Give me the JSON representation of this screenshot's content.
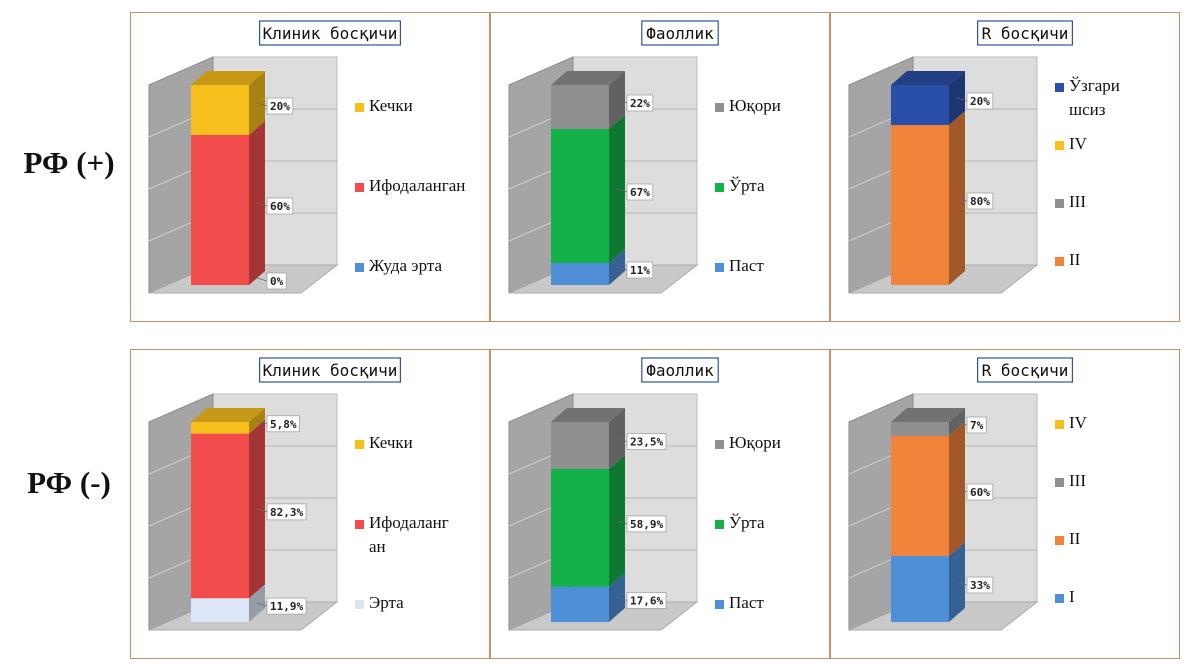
{
  "rows": [
    {
      "label": "РФ (+)"
    },
    {
      "label": "РФ (-)"
    }
  ],
  "colors": {
    "light_blue": "#dbe7f6",
    "blue": "#4f8fd8",
    "navy": "#2a4fa8",
    "red": "#f24c4c",
    "yellow": "#f6bf1c",
    "green": "#14b04a",
    "gray": "#8f8f8f",
    "orange": "#f0823a"
  },
  "chart_data": [
    {
      "type": "bar",
      "stacked": true,
      "row": 0,
      "col": 0,
      "title": "Клиник босқичи",
      "series": [
        {
          "name": "Жуда эрта",
          "value": 0,
          "label": "0%",
          "color": "#dbe7f6"
        },
        {
          "name": "Ифодаланган",
          "value": 60,
          "label": "60%",
          "color": "#f24c4c"
        },
        {
          "name": "Кечки",
          "value": 20,
          "label": "20%",
          "color": "#f6bf1c"
        }
      ],
      "legend": [
        {
          "text": [
            "Кечки"
          ],
          "color": "#f6bf1c"
        },
        {
          "text": [
            "Ифодаланган"
          ],
          "color": "#f24c4c"
        },
        {
          "text": [
            "Жуда эрта"
          ],
          "color": "#4f8fd8"
        }
      ]
    },
    {
      "type": "bar",
      "stacked": true,
      "row": 0,
      "col": 1,
      "title": "Фаоллик",
      "series": [
        {
          "name": "Паст",
          "value": 11,
          "label": "11%",
          "color": "#4f8fd8"
        },
        {
          "name": "Ўрта",
          "value": 67,
          "label": "67%",
          "color": "#14b04a"
        },
        {
          "name": "Юқори",
          "value": 22,
          "label": "22%",
          "color": "#8f8f8f"
        }
      ],
      "legend": [
        {
          "text": [
            "Юқори"
          ],
          "color": "#8f8f8f"
        },
        {
          "text": [
            "Ўрта"
          ],
          "color": "#14b04a"
        },
        {
          "text": [
            "Паст"
          ],
          "color": "#4f8fd8"
        }
      ]
    },
    {
      "type": "bar",
      "stacked": true,
      "row": 0,
      "col": 2,
      "title": "R босқичи",
      "series": [
        {
          "name": "II",
          "value": 80,
          "label": "80%",
          "color": "#f0823a"
        },
        {
          "name": "Ўзгаришсиз",
          "value": 20,
          "label": "20%",
          "color": "#2a4fa8"
        }
      ],
      "legend": [
        {
          "text": [
            "Ўзгари",
            "шсиз"
          ],
          "color": "#2a4fa8"
        },
        {
          "text": [
            "IV"
          ],
          "color": "#f6bf1c"
        },
        {
          "text": [
            "III"
          ],
          "color": "#8f8f8f"
        },
        {
          "text": [
            "II"
          ],
          "color": "#f0823a"
        }
      ]
    },
    {
      "type": "bar",
      "stacked": true,
      "row": 1,
      "col": 0,
      "title": "Клиник босқичи",
      "series": [
        {
          "name": "Эрта",
          "value": 11.9,
          "label": "11,9%",
          "color": "#dbe7f6"
        },
        {
          "name": "Ифодаланган",
          "value": 82.3,
          "label": "82,3%",
          "color": "#f24c4c"
        },
        {
          "name": "Кечки",
          "value": 5.8,
          "label": "5,8%",
          "color": "#f6bf1c"
        }
      ],
      "legend": [
        {
          "text": [
            "Кечки"
          ],
          "color": "#f6bf1c"
        },
        {
          "text": [
            "Ифодаланг",
            "ан"
          ],
          "color": "#f24c4c"
        },
        {
          "text": [
            "Эрта"
          ],
          "color": "#dbe7f6"
        }
      ]
    },
    {
      "type": "bar",
      "stacked": true,
      "row": 1,
      "col": 1,
      "title": "Фаоллик",
      "series": [
        {
          "name": "Паст",
          "value": 17.6,
          "label": "17,6%",
          "color": "#4f8fd8"
        },
        {
          "name": "Ўрта",
          "value": 58.9,
          "label": "58,9%",
          "color": "#14b04a"
        },
        {
          "name": "Юқори",
          "value": 23.5,
          "label": "23,5%",
          "color": "#8f8f8f"
        }
      ],
      "legend": [
        {
          "text": [
            "Юқори"
          ],
          "color": "#8f8f8f"
        },
        {
          "text": [
            "Ўрта"
          ],
          "color": "#14b04a"
        },
        {
          "text": [
            "Паст"
          ],
          "color": "#4f8fd8"
        }
      ]
    },
    {
      "type": "bar",
      "stacked": true,
      "row": 1,
      "col": 2,
      "title": "R босқичи",
      "series": [
        {
          "name": "I",
          "value": 33,
          "label": "33%",
          "color": "#4f8fd8"
        },
        {
          "name": "II",
          "value": 60,
          "label": "60%",
          "color": "#f0823a"
        },
        {
          "name": "III",
          "value": 7,
          "label": "7%",
          "color": "#8f8f8f"
        }
      ],
      "legend": [
        {
          "text": [
            "IV"
          ],
          "color": "#f6bf1c"
        },
        {
          "text": [
            "III"
          ],
          "color": "#8f8f8f"
        },
        {
          "text": [
            "II"
          ],
          "color": "#f0823a"
        },
        {
          "text": [
            "I"
          ],
          "color": "#4f8fd8"
        }
      ]
    }
  ]
}
